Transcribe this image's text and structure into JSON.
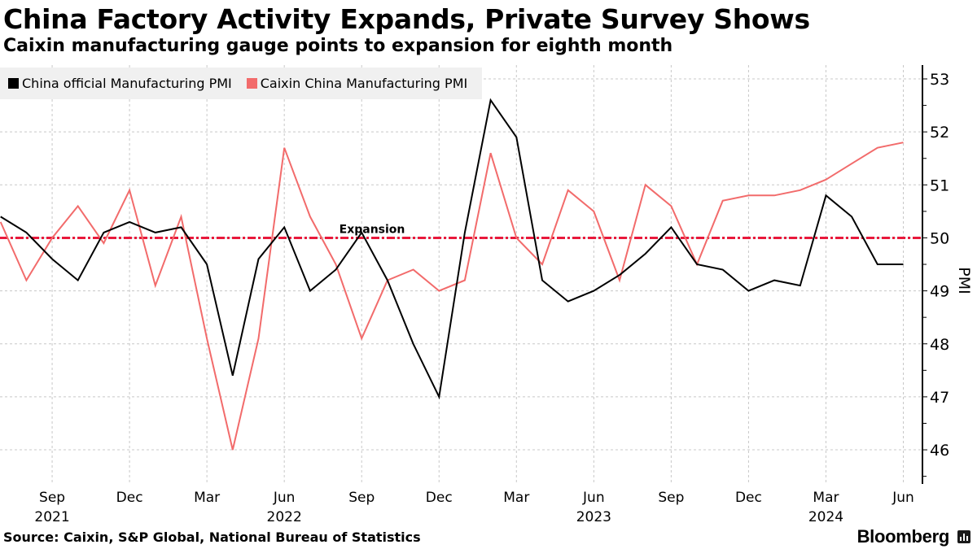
{
  "header": {
    "title": "China Factory Activity Expands, Private Survey Shows",
    "subtitle": "Caixin manufacturing gauge points to expansion for eighth month"
  },
  "footer": {
    "source": "Source: Caixin, S&P Global, National Bureau of Statistics",
    "brand": "Bloomberg",
    "brand_icon": "bloomberg-terminal-icon"
  },
  "colors": {
    "official": "#000000",
    "caixin": "#f26b6b",
    "reference": "#e8193c",
    "grid": "#c8c8c8",
    "legend_bg": "#f0f0f0"
  },
  "chart_data": {
    "type": "line",
    "title": "China Factory Activity Expands, Private Survey Shows",
    "subtitle": "Caixin manufacturing gauge points to expansion for eighth month",
    "xlabel": "",
    "ylabel": "PMI",
    "ylim": [
      45.35,
      53.2
    ],
    "yticks": [
      46,
      47,
      48,
      49,
      50,
      51,
      52,
      53
    ],
    "y_axis_position": "right",
    "grid": true,
    "legend": "top-left",
    "x": [
      "2021-07",
      "2021-08",
      "2021-09",
      "2021-10",
      "2021-11",
      "2021-12",
      "2022-01",
      "2022-02",
      "2022-03",
      "2022-04",
      "2022-05",
      "2022-06",
      "2022-07",
      "2022-08",
      "2022-09",
      "2022-10",
      "2022-11",
      "2022-12",
      "2023-01",
      "2023-02",
      "2023-03",
      "2023-04",
      "2023-05",
      "2023-06",
      "2023-07",
      "2023-08",
      "2023-09",
      "2023-10",
      "2023-11",
      "2023-12",
      "2024-01",
      "2024-02",
      "2024-03",
      "2024-04",
      "2024-05",
      "2024-06"
    ],
    "xticks": [
      {
        "index": 2,
        "label": "Sep",
        "year": "2021"
      },
      {
        "index": 5,
        "label": "Dec",
        "year": ""
      },
      {
        "index": 8,
        "label": "Mar",
        "year": ""
      },
      {
        "index": 11,
        "label": "Jun",
        "year": "2022"
      },
      {
        "index": 14,
        "label": "Sep",
        "year": ""
      },
      {
        "index": 17,
        "label": "Dec",
        "year": ""
      },
      {
        "index": 20,
        "label": "Mar",
        "year": ""
      },
      {
        "index": 23,
        "label": "Jun",
        "year": "2023"
      },
      {
        "index": 26,
        "label": "Sep",
        "year": ""
      },
      {
        "index": 29,
        "label": "Dec",
        "year": ""
      },
      {
        "index": 32,
        "label": "Mar",
        "year": "2024"
      },
      {
        "index": 35,
        "label": "Jun",
        "year": ""
      }
    ],
    "series": [
      {
        "name": "China official Manufacturing PMI",
        "color": "#000000",
        "values": [
          50.4,
          50.1,
          49.6,
          49.2,
          50.1,
          50.3,
          50.1,
          50.2,
          49.5,
          47.4,
          49.6,
          50.2,
          49.0,
          49.4,
          50.1,
          49.2,
          48.0,
          47.0,
          50.1,
          52.6,
          51.9,
          49.2,
          48.8,
          49.0,
          49.3,
          49.7,
          50.2,
          49.5,
          49.4,
          49.0,
          49.2,
          49.1,
          50.8,
          50.4,
          49.5,
          49.5
        ]
      },
      {
        "name": "Caixin China Manufacturing PMI",
        "color": "#f26b6b",
        "values": [
          50.3,
          49.2,
          50.0,
          50.6,
          49.9,
          50.9,
          49.1,
          50.4,
          48.1,
          46.0,
          48.1,
          51.7,
          50.4,
          49.5,
          48.1,
          49.2,
          49.4,
          49.0,
          49.2,
          51.6,
          50.0,
          49.5,
          50.9,
          50.5,
          49.2,
          51.0,
          50.6,
          49.5,
          50.7,
          50.8,
          50.8,
          50.9,
          51.1,
          51.4,
          51.7,
          51.8
        ]
      }
    ],
    "reference_line": {
      "value": 50,
      "label": "Expansion",
      "style": "dash-dot",
      "color": "#e8193c"
    }
  }
}
